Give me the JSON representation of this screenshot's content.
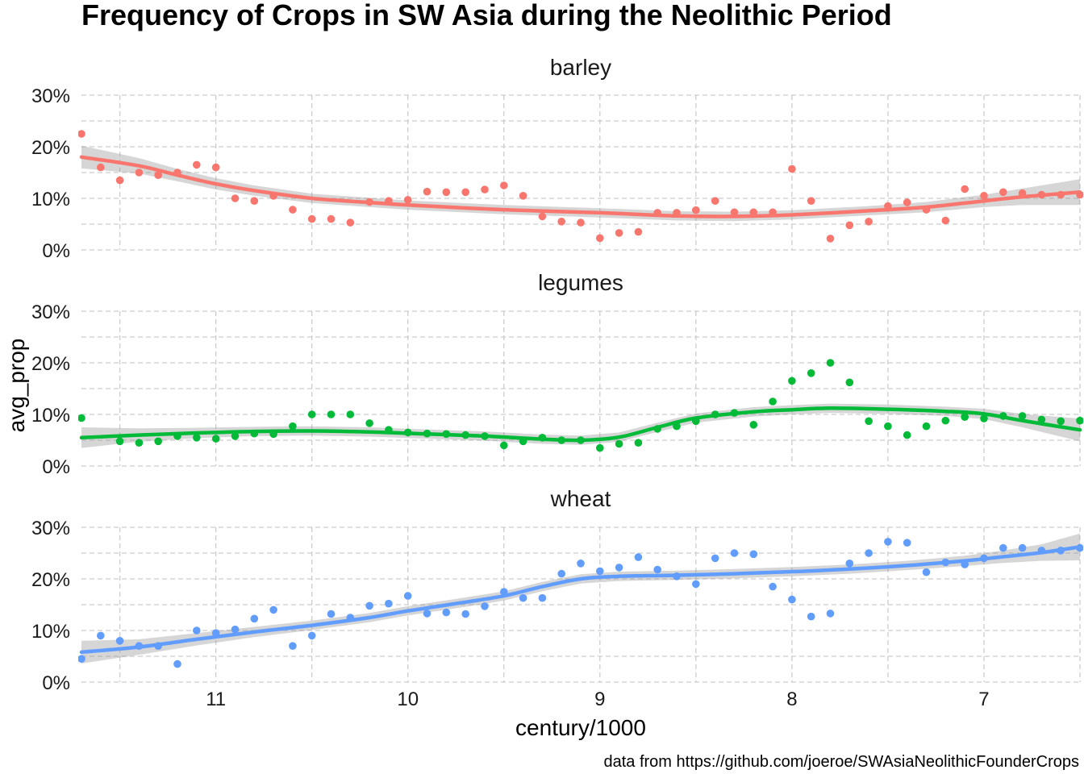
{
  "chart_data": {
    "type": "scatter",
    "title": "Frequency of Crops in SW Asia during the Neolithic Period",
    "xlabel": "century/1000",
    "ylabel": "avg_prop",
    "caption": "data from https://github.com/joeroe/SWAsiaNeolithicFounderCrops",
    "x_reversed": true,
    "xlim": [
      11.7,
      6.5
    ],
    "ylim": [
      0,
      0.3
    ],
    "x_ticks": [
      11,
      10,
      9,
      8,
      7
    ],
    "x_tick_labels": [
      "11",
      "10",
      "9",
      "8",
      "7"
    ],
    "y_ticks": [
      0,
      0.1,
      0.2,
      0.3
    ],
    "y_tick_labels": [
      "0%",
      "10%",
      "20%",
      "30%"
    ],
    "grid": true,
    "legend": "none",
    "smooth": "loess with confidence band",
    "panels": [
      {
        "name": "barley",
        "color": "#F8766D",
        "points": [
          [
            11.7,
            0.225
          ],
          [
            11.6,
            0.16
          ],
          [
            11.5,
            0.135
          ],
          [
            11.4,
            0.15
          ],
          [
            11.3,
            0.145
          ],
          [
            11.2,
            0.15
          ],
          [
            11.1,
            0.165
          ],
          [
            11.0,
            0.16
          ],
          [
            10.9,
            0.1
          ],
          [
            10.8,
            0.095
          ],
          [
            10.7,
            0.105
          ],
          [
            10.6,
            0.078
          ],
          [
            10.5,
            0.06
          ],
          [
            10.4,
            0.06
          ],
          [
            10.3,
            0.053
          ],
          [
            10.2,
            0.093
          ],
          [
            10.1,
            0.095
          ],
          [
            10.0,
            0.097
          ],
          [
            9.9,
            0.113
          ],
          [
            9.8,
            0.112
          ],
          [
            9.7,
            0.112
          ],
          [
            9.6,
            0.117
          ],
          [
            9.5,
            0.125
          ],
          [
            9.4,
            0.105
          ],
          [
            9.3,
            0.065
          ],
          [
            9.2,
            0.055
          ],
          [
            9.1,
            0.053
          ],
          [
            9.0,
            0.023
          ],
          [
            8.9,
            0.033
          ],
          [
            8.8,
            0.035
          ],
          [
            8.7,
            0.072
          ],
          [
            8.6,
            0.072
          ],
          [
            8.5,
            0.077
          ],
          [
            8.4,
            0.095
          ],
          [
            8.3,
            0.073
          ],
          [
            8.2,
            0.073
          ],
          [
            8.1,
            0.073
          ],
          [
            8.0,
            0.157
          ],
          [
            7.9,
            0.095
          ],
          [
            7.8,
            0.022
          ],
          [
            7.7,
            0.048
          ],
          [
            7.6,
            0.055
          ],
          [
            7.5,
            0.085
          ],
          [
            7.4,
            0.092
          ],
          [
            7.3,
            0.078
          ],
          [
            7.2,
            0.057
          ],
          [
            7.1,
            0.118
          ],
          [
            7.0,
            0.105
          ],
          [
            6.9,
            0.112
          ],
          [
            6.8,
            0.11
          ],
          [
            6.7,
            0.107
          ],
          [
            6.6,
            0.107
          ],
          [
            6.5,
            0.107
          ]
        ],
        "smooth": [
          [
            11.7,
            0.18
          ],
          [
            11.4,
            0.163
          ],
          [
            11.2,
            0.145
          ],
          [
            11.0,
            0.128
          ],
          [
            10.8,
            0.115
          ],
          [
            10.5,
            0.1
          ],
          [
            10.2,
            0.092
          ],
          [
            10.0,
            0.087
          ],
          [
            9.5,
            0.078
          ],
          [
            9.0,
            0.072
          ],
          [
            8.6,
            0.066
          ],
          [
            8.3,
            0.065
          ],
          [
            8.0,
            0.068
          ],
          [
            7.6,
            0.076
          ],
          [
            7.3,
            0.083
          ],
          [
            7.0,
            0.095
          ],
          [
            6.8,
            0.103
          ],
          [
            6.5,
            0.112
          ]
        ],
        "band": [
          0.022,
          0.015,
          0.012,
          0.011,
          0.01,
          0.009,
          0.009,
          0.009,
          0.009,
          0.009,
          0.009,
          0.009,
          0.009,
          0.009,
          0.01,
          0.012,
          0.016,
          0.025
        ]
      },
      {
        "name": "legumes",
        "color": "#00BA38",
        "points": [
          [
            11.7,
            0.093
          ],
          [
            11.5,
            0.048
          ],
          [
            11.4,
            0.045
          ],
          [
            11.3,
            0.048
          ],
          [
            11.2,
            0.058
          ],
          [
            11.1,
            0.055
          ],
          [
            11.0,
            0.053
          ],
          [
            10.9,
            0.058
          ],
          [
            10.8,
            0.063
          ],
          [
            10.7,
            0.062
          ],
          [
            10.6,
            0.077
          ],
          [
            10.5,
            0.1
          ],
          [
            10.4,
            0.1
          ],
          [
            10.3,
            0.1
          ],
          [
            10.2,
            0.083
          ],
          [
            10.1,
            0.07
          ],
          [
            10.0,
            0.065
          ],
          [
            9.9,
            0.063
          ],
          [
            9.8,
            0.062
          ],
          [
            9.7,
            0.06
          ],
          [
            9.6,
            0.058
          ],
          [
            9.5,
            0.04
          ],
          [
            9.4,
            0.048
          ],
          [
            9.3,
            0.055
          ],
          [
            9.2,
            0.05
          ],
          [
            9.1,
            0.05
          ],
          [
            9.0,
            0.035
          ],
          [
            8.9,
            0.043
          ],
          [
            8.8,
            0.045
          ],
          [
            8.7,
            0.072
          ],
          [
            8.6,
            0.077
          ],
          [
            8.5,
            0.087
          ],
          [
            8.4,
            0.1
          ],
          [
            8.3,
            0.103
          ],
          [
            8.2,
            0.08
          ],
          [
            8.1,
            0.125
          ],
          [
            8.0,
            0.165
          ],
          [
            7.9,
            0.18
          ],
          [
            7.8,
            0.2
          ],
          [
            7.7,
            0.162
          ],
          [
            7.6,
            0.087
          ],
          [
            7.5,
            0.077
          ],
          [
            7.4,
            0.06
          ],
          [
            7.3,
            0.077
          ],
          [
            7.2,
            0.088
          ],
          [
            7.1,
            0.095
          ],
          [
            7.0,
            0.092
          ],
          [
            6.9,
            0.097
          ],
          [
            6.8,
            0.097
          ],
          [
            6.7,
            0.09
          ],
          [
            6.6,
            0.087
          ],
          [
            6.5,
            0.088
          ]
        ],
        "smooth": [
          [
            11.7,
            0.055
          ],
          [
            11.4,
            0.06
          ],
          [
            11.1,
            0.064
          ],
          [
            10.8,
            0.067
          ],
          [
            10.5,
            0.068
          ],
          [
            10.2,
            0.066
          ],
          [
            9.9,
            0.062
          ],
          [
            9.6,
            0.058
          ],
          [
            9.3,
            0.052
          ],
          [
            9.1,
            0.05
          ],
          [
            8.9,
            0.056
          ],
          [
            8.7,
            0.075
          ],
          [
            8.5,
            0.093
          ],
          [
            8.2,
            0.105
          ],
          [
            8.0,
            0.109
          ],
          [
            7.8,
            0.112
          ],
          [
            7.5,
            0.11
          ],
          [
            7.2,
            0.106
          ],
          [
            7.0,
            0.101
          ],
          [
            6.8,
            0.088
          ],
          [
            6.5,
            0.07
          ]
        ],
        "band": [
          0.02,
          0.013,
          0.01,
          0.009,
          0.009,
          0.009,
          0.009,
          0.009,
          0.009,
          0.009,
          0.009,
          0.009,
          0.009,
          0.009,
          0.009,
          0.009,
          0.009,
          0.009,
          0.01,
          0.013,
          0.022
        ]
      },
      {
        "name": "wheat",
        "color": "#619CFF",
        "points": [
          [
            11.7,
            0.045
          ],
          [
            11.6,
            0.09
          ],
          [
            11.5,
            0.08
          ],
          [
            11.4,
            0.07
          ],
          [
            11.3,
            0.07
          ],
          [
            11.2,
            0.035
          ],
          [
            11.1,
            0.1
          ],
          [
            11.0,
            0.095
          ],
          [
            10.9,
            0.102
          ],
          [
            10.8,
            0.123
          ],
          [
            10.7,
            0.14
          ],
          [
            10.6,
            0.07
          ],
          [
            10.5,
            0.09
          ],
          [
            10.4,
            0.132
          ],
          [
            10.3,
            0.125
          ],
          [
            10.2,
            0.148
          ],
          [
            10.1,
            0.152
          ],
          [
            10.0,
            0.167
          ],
          [
            9.9,
            0.133
          ],
          [
            9.8,
            0.135
          ],
          [
            9.7,
            0.132
          ],
          [
            9.6,
            0.147
          ],
          [
            9.5,
            0.175
          ],
          [
            9.4,
            0.163
          ],
          [
            9.3,
            0.163
          ],
          [
            9.2,
            0.21
          ],
          [
            9.1,
            0.23
          ],
          [
            9.0,
            0.215
          ],
          [
            8.9,
            0.222
          ],
          [
            8.8,
            0.242
          ],
          [
            8.7,
            0.218
          ],
          [
            8.6,
            0.205
          ],
          [
            8.5,
            0.19
          ],
          [
            8.4,
            0.24
          ],
          [
            8.3,
            0.25
          ],
          [
            8.2,
            0.248
          ],
          [
            8.1,
            0.185
          ],
          [
            8.0,
            0.16
          ],
          [
            7.9,
            0.127
          ],
          [
            7.8,
            0.133
          ],
          [
            7.7,
            0.23
          ],
          [
            7.6,
            0.25
          ],
          [
            7.5,
            0.272
          ],
          [
            7.4,
            0.27
          ],
          [
            7.3,
            0.213
          ],
          [
            7.2,
            0.232
          ],
          [
            7.1,
            0.228
          ],
          [
            7.0,
            0.24
          ],
          [
            6.9,
            0.26
          ],
          [
            6.8,
            0.26
          ],
          [
            6.7,
            0.255
          ],
          [
            6.6,
            0.255
          ],
          [
            6.5,
            0.26
          ]
        ],
        "smooth": [
          [
            11.7,
            0.058
          ],
          [
            11.4,
            0.068
          ],
          [
            11.1,
            0.083
          ],
          [
            10.8,
            0.097
          ],
          [
            10.5,
            0.11
          ],
          [
            10.2,
            0.125
          ],
          [
            10.0,
            0.138
          ],
          [
            9.7,
            0.155
          ],
          [
            9.5,
            0.167
          ],
          [
            9.3,
            0.185
          ],
          [
            9.1,
            0.2
          ],
          [
            8.9,
            0.205
          ],
          [
            8.6,
            0.207
          ],
          [
            8.3,
            0.21
          ],
          [
            8.0,
            0.214
          ],
          [
            7.7,
            0.219
          ],
          [
            7.4,
            0.226
          ],
          [
            7.1,
            0.235
          ],
          [
            6.9,
            0.243
          ],
          [
            6.7,
            0.251
          ],
          [
            6.5,
            0.262
          ]
        ],
        "band": [
          0.022,
          0.015,
          0.012,
          0.01,
          0.009,
          0.009,
          0.009,
          0.009,
          0.009,
          0.009,
          0.009,
          0.009,
          0.009,
          0.009,
          0.009,
          0.009,
          0.009,
          0.01,
          0.012,
          0.016,
          0.026
        ]
      }
    ]
  }
}
